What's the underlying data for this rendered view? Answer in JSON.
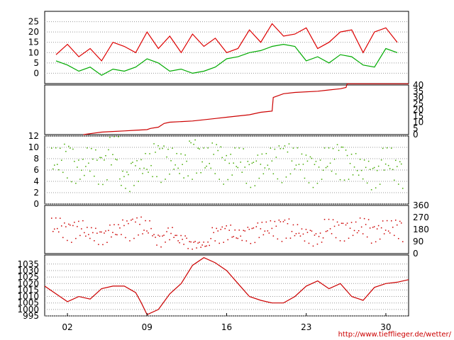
{
  "chart_data": [
    {
      "type": "line",
      "series": [
        {
          "name": "",
          "color": "#dd0000",
          "x": [
            1,
            2,
            3,
            4,
            5,
            6,
            7,
            8,
            9,
            10,
            11,
            12,
            13,
            14,
            15,
            16,
            17,
            18,
            19,
            20,
            21,
            22,
            23,
            24,
            25,
            26,
            27,
            28,
            29,
            30,
            31
          ],
          "y": [
            9,
            14,
            8,
            12,
            6,
            15,
            13,
            10,
            20,
            12,
            18,
            10,
            19,
            13,
            17,
            10,
            12,
            21,
            15,
            24,
            18,
            19,
            22,
            12,
            15,
            20,
            21,
            10,
            20,
            22,
            15
          ]
        },
        {
          "name": "",
          "color": "#00aa00",
          "x": [
            1,
            2,
            3,
            4,
            5,
            6,
            7,
            8,
            9,
            10,
            11,
            12,
            13,
            14,
            15,
            16,
            17,
            18,
            19,
            20,
            21,
            22,
            23,
            24,
            25,
            26,
            27,
            28,
            29,
            30,
            31
          ],
          "y": [
            6,
            4,
            1,
            3,
            -1,
            2,
            1,
            3,
            7,
            5,
            1,
            2,
            0,
            1,
            3,
            7,
            8,
            10,
            11,
            13,
            14,
            13,
            6,
            8,
            5,
            9,
            8,
            4,
            3,
            12,
            10
          ]
        }
      ],
      "yticks": [
        0,
        5,
        10,
        15,
        20,
        25
      ],
      "ylim": [
        -5,
        30
      ],
      "grid": true
    },
    {
      "type": "line",
      "series": [
        {
          "name": "",
          "color": "#cc0000",
          "x": [
            3.4,
            5,
            6,
            7,
            8,
            9,
            9.3,
            10,
            10.5,
            11,
            13,
            15,
            16,
            18,
            19,
            20,
            20.1,
            21,
            22,
            24,
            25,
            26,
            26.5,
            26.6,
            28,
            30,
            31,
            32
          ],
          "y": [
            0,
            2,
            2.5,
            3,
            3.5,
            4,
            5,
            6,
            9,
            10,
            11,
            13,
            14,
            16,
            18,
            19,
            30,
            33,
            34,
            35,
            36,
            37,
            38,
            41,
            41,
            41,
            41,
            41
          ]
        }
      ],
      "yticks_right": [
        0,
        5,
        10,
        15,
        20,
        25,
        30,
        35,
        40
      ],
      "ylim": [
        0,
        40
      ],
      "grid": false
    },
    {
      "type": "scatter",
      "series": [
        {
          "name": "",
          "color": "#44aa00",
          "x": [
            1,
            2,
            3,
            4,
            5,
            6,
            7,
            8,
            9,
            10,
            11,
            12,
            13,
            14,
            15,
            16,
            17,
            18,
            19,
            20,
            21,
            22,
            23,
            24,
            25,
            26,
            27,
            28,
            29,
            30,
            31
          ],
          "y": [
            10,
            11,
            8,
            10,
            9,
            12,
            6,
            8,
            9,
            11,
            10,
            9,
            12,
            10,
            11,
            9,
            10,
            8,
            9,
            10,
            11,
            10,
            9,
            8,
            10,
            11,
            9,
            8,
            7,
            10,
            8
          ]
        }
      ],
      "yticks": [
        0,
        2,
        4,
        6,
        8,
        10,
        12
      ],
      "ylim": [
        0,
        12
      ],
      "grid": true
    },
    {
      "type": "scatter",
      "series": [
        {
          "name": "",
          "color": "#cc0000",
          "x": [
            1,
            2,
            3,
            4,
            5,
            6,
            7,
            8,
            9,
            10,
            11,
            12,
            13,
            14,
            15,
            16,
            17,
            18,
            19,
            20,
            21,
            22,
            23,
            24,
            25,
            26,
            27,
            28,
            29,
            30,
            31
          ],
          "y": [
            270,
            240,
            250,
            200,
            180,
            220,
            260,
            280,
            250,
            150,
            200,
            140,
            100,
            90,
            200,
            220,
            180,
            210,
            240,
            250,
            270,
            220,
            190,
            160,
            260,
            250,
            240,
            270,
            220,
            250,
            260
          ]
        }
      ],
      "yticks_right": [
        0,
        90,
        180,
        270,
        360
      ],
      "ylim": [
        0,
        360
      ],
      "grid": false
    },
    {
      "type": "line",
      "series": [
        {
          "name": "",
          "color": "#cc0000",
          "x": [
            0,
            1,
            2,
            3,
            4,
            5,
            6,
            7,
            8,
            8.5,
            9,
            10,
            11,
            12,
            13,
            14,
            15,
            16,
            17,
            18,
            19,
            20,
            21,
            22,
            23,
            24,
            25,
            26,
            27,
            28,
            29,
            30,
            31,
            32
          ],
          "y": [
            1018,
            1012,
            1006,
            1010,
            1008,
            1016,
            1018,
            1018,
            1013,
            1005,
            996,
            1000,
            1012,
            1020,
            1034,
            1040,
            1036,
            1030,
            1020,
            1010,
            1007,
            1005,
            1005,
            1010,
            1018,
            1022,
            1016,
            1020,
            1010,
            1007,
            1017,
            1020,
            1021,
            1023
          ]
        }
      ],
      "yticks": [
        995,
        1000,
        1005,
        1010,
        1015,
        1020,
        1025,
        1030,
        1035
      ],
      "ylim": [
        995,
        1042
      ],
      "grid": true
    }
  ],
  "xaxis": {
    "xlim": [
      0,
      32
    ],
    "ticks": [
      {
        "value": 2,
        "label": "02"
      },
      {
        "value": 9,
        "label": "09"
      },
      {
        "value": 16,
        "label": "16"
      },
      {
        "value": 23,
        "label": "23"
      },
      {
        "value": 30,
        "label": "30"
      }
    ]
  },
  "credit": "http://www.tiefflieger.de/wetter/"
}
